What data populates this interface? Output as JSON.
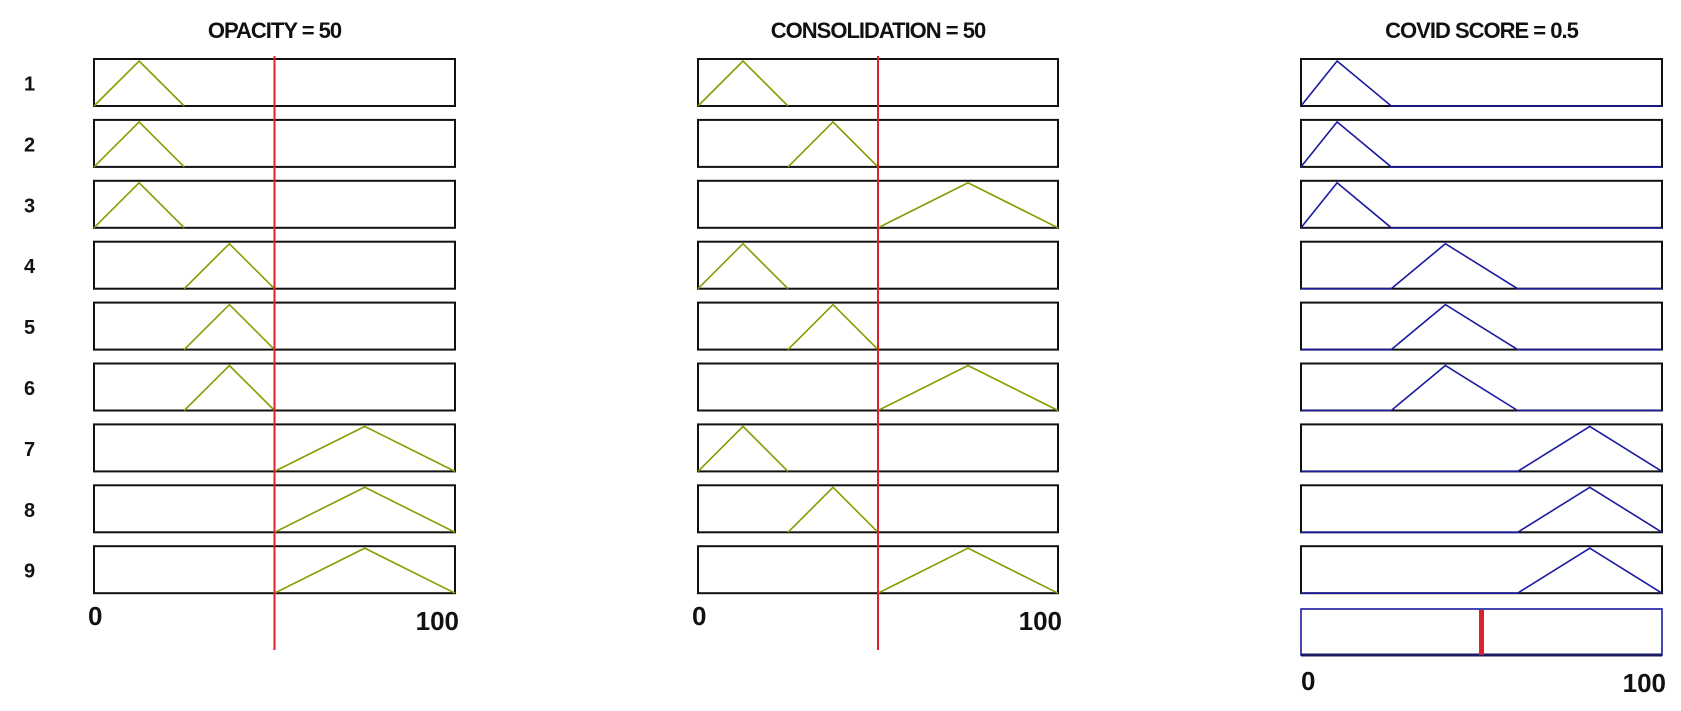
{
  "chart_data": {
    "type": "fuzzy-rule-viewer",
    "rules": [
      "1",
      "2",
      "3",
      "4",
      "5",
      "6",
      "7",
      "8",
      "9"
    ],
    "inputs": [
      {
        "title": "OPACITY = 50",
        "value": 50,
        "range": [
          0,
          100
        ],
        "tick_labels": [
          "0",
          "100"
        ],
        "color": "#8a9a00",
        "membership_per_rule": [
          [
            0,
            12.5,
            25
          ],
          [
            0,
            12.5,
            25
          ],
          [
            0,
            12.5,
            25
          ],
          [
            25,
            37.5,
            50
          ],
          [
            25,
            37.5,
            50
          ],
          [
            25,
            37.5,
            50
          ],
          [
            50,
            75,
            100
          ],
          [
            50,
            75,
            100
          ],
          [
            50,
            75,
            100
          ]
        ]
      },
      {
        "title": "CONSOLIDATION = 50",
        "value": 50,
        "range": [
          0,
          100
        ],
        "tick_labels": [
          "0",
          "100"
        ],
        "color": "#8a9a00",
        "membership_per_rule": [
          [
            0,
            12.5,
            25
          ],
          [
            25,
            37.5,
            50
          ],
          [
            50,
            75,
            100
          ],
          [
            0,
            12.5,
            25
          ],
          [
            25,
            37.5,
            50
          ],
          [
            50,
            75,
            100
          ],
          [
            0,
            12.5,
            25
          ],
          [
            25,
            37.5,
            50
          ],
          [
            50,
            75,
            100
          ]
        ]
      }
    ],
    "output": {
      "title": "COVID SCORE = 0.5",
      "value": 0.5,
      "range": [
        0,
        1
      ],
      "tick_labels": [
        "0",
        "100"
      ],
      "color": "#1a1aa0",
      "membership_per_rule": [
        [
          0,
          10,
          25
        ],
        [
          0,
          10,
          25
        ],
        [
          0,
          10,
          25
        ],
        [
          25,
          40,
          60
        ],
        [
          25,
          40,
          60
        ],
        [
          25,
          40,
          60
        ],
        [
          60,
          80,
          100
        ],
        [
          60,
          80,
          100
        ],
        [
          60,
          80,
          100
        ]
      ]
    },
    "marker_color": "#e0202a"
  }
}
